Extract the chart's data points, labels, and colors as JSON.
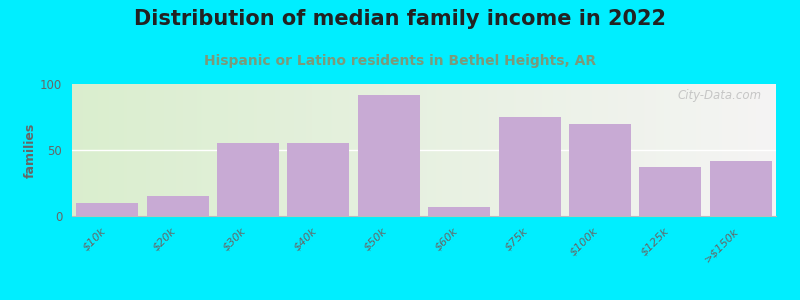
{
  "title": "Distribution of median family income in 2022",
  "subtitle": "Hispanic or Latino residents in Bethel Heights, AR",
  "categories": [
    "$10k",
    "$20k",
    "$30k",
    "$40k",
    "$50k",
    "$60k",
    "$75k",
    "$100k",
    "$125k",
    ">$150k"
  ],
  "values": [
    10,
    15,
    55,
    55,
    92,
    7,
    75,
    70,
    37,
    42
  ],
  "bar_color": "#c8aad4",
  "background_outer": "#00eeff",
  "background_inner_left": "#ddeece",
  "background_inner_right": "#f5f4f4",
  "ylabel": "families",
  "ylim": [
    0,
    100
  ],
  "yticks": [
    0,
    50,
    100
  ],
  "title_fontsize": 15,
  "subtitle_fontsize": 10,
  "subtitle_color": "#7a9a7a",
  "watermark": "City-Data.com",
  "title_color": "#222222"
}
